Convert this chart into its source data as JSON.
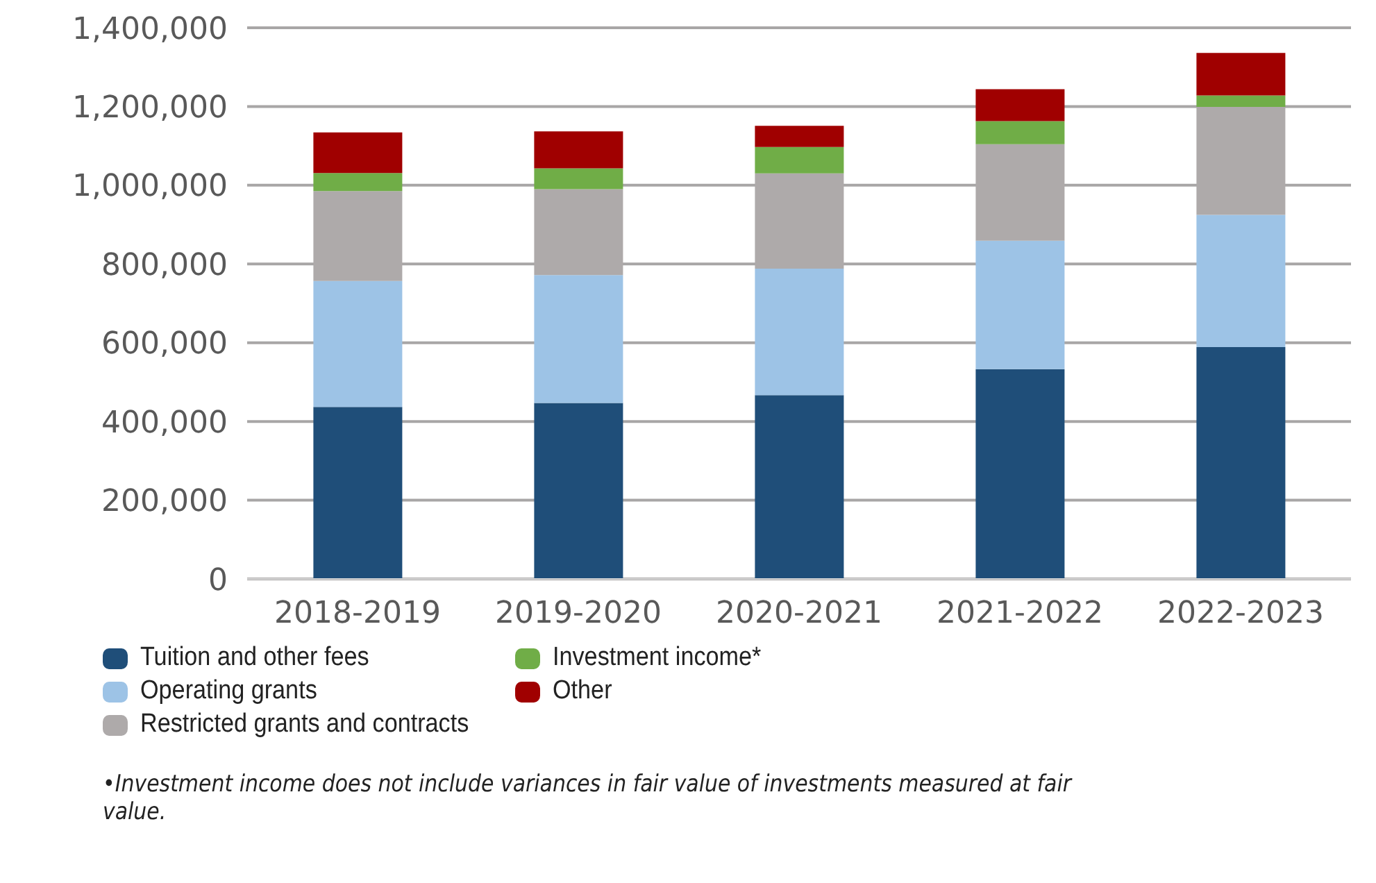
{
  "chart_data": {
    "type": "bar",
    "stacked": true,
    "categories": [
      "2018-2019",
      "2019-2020",
      "2020-2021",
      "2021-2022",
      "2022-2023"
    ],
    "series": [
      {
        "name": "Tuition and other fees",
        "color": "#1f4e79",
        "values": [
          437000,
          447000,
          467000,
          533000,
          589000
        ]
      },
      {
        "name": "Operating grants",
        "color": "#9dc3e6",
        "values": [
          320000,
          325000,
          321000,
          326000,
          336000
        ]
      },
      {
        "name": "Restricted grants and contracts",
        "color": "#aeaaaa",
        "values": [
          228000,
          218000,
          242000,
          245000,
          274000
        ]
      },
      {
        "name": "Investment income*",
        "color": "#70ad47",
        "values": [
          46000,
          53000,
          67000,
          59000,
          29000
        ]
      },
      {
        "name": "Other",
        "color": "#a00000",
        "values": [
          103000,
          94000,
          54000,
          81000,
          108000
        ]
      }
    ],
    "ylim": [
      0,
      1400000
    ],
    "yticks": [
      0,
      {
        "value": 200000,
        "label": "200,000"
      },
      {
        "value": 400000,
        "label": "400,000"
      },
      {
        "value": 600000,
        "label": "600,000"
      },
      {
        "value": 800000,
        "label": "800,000"
      },
      {
        "value": 1000000,
        "label": "1,000,000"
      },
      {
        "value": 1200000,
        "label": "1,200,000"
      },
      {
        "value": 1400000,
        "label": "1,400,000"
      }
    ],
    "grid": "y",
    "legend": "bottom",
    "annotations": [
      "•Investment income does not include variances in fair value of investments measured at fair value."
    ]
  }
}
